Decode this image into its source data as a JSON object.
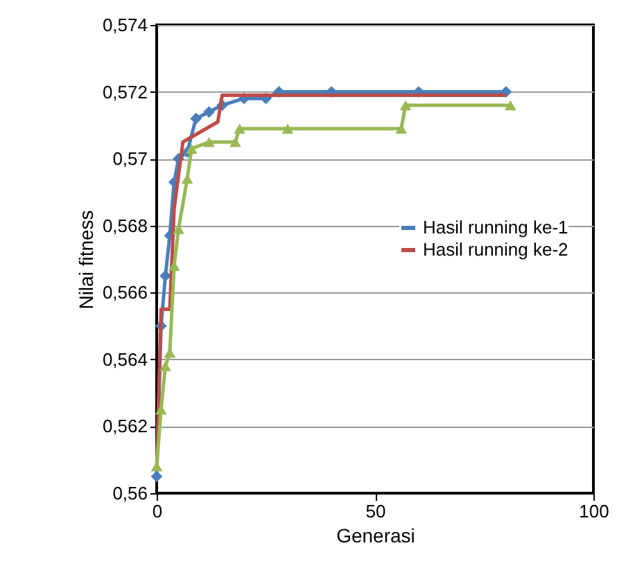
{
  "chart_data": {
    "type": "line",
    "xlabel": "Generasi",
    "ylabel": "Nilai fitness",
    "xlim": [
      0,
      100
    ],
    "xticks": [
      0,
      50,
      100
    ],
    "ylim": [
      0.56,
      0.574
    ],
    "yticks": [
      {
        "value": 0.56,
        "label": "0,56"
      },
      {
        "value": 0.562,
        "label": "0,562"
      },
      {
        "value": 0.564,
        "label": "0,564"
      },
      {
        "value": 0.566,
        "label": "0,566"
      },
      {
        "value": 0.568,
        "label": "0,568"
      },
      {
        "value": 0.57,
        "label": "0,57"
      },
      {
        "value": 0.572,
        "label": "0,572"
      },
      {
        "value": 0.574,
        "label": "0,574"
      }
    ],
    "grid": "y",
    "legend": "right",
    "series": [
      {
        "name": "Hasil running ke-1",
        "color": "#4a7ebb",
        "marker": "diamond",
        "x": [
          0,
          1,
          2,
          3,
          4,
          5,
          7,
          9,
          12,
          15,
          20,
          25,
          28,
          40,
          60,
          80
        ],
        "values": [
          0.5605,
          0.565,
          0.5665,
          0.5677,
          0.5693,
          0.57,
          0.5702,
          0.5712,
          0.5714,
          0.5716,
          0.5718,
          0.5718,
          0.572,
          0.572,
          0.572,
          0.572
        ]
      },
      {
        "name": "Hasil running ke-2",
        "color": "#be4b48",
        "marker": "none",
        "x": [
          0,
          1,
          3,
          4,
          6,
          14,
          15,
          80
        ],
        "values": [
          0.5607,
          0.5655,
          0.5655,
          0.5685,
          0.5705,
          0.5711,
          0.5719,
          0.5719
        ]
      },
      {
        "color": "#98b954",
        "marker": "triangle",
        "x": [
          0,
          1,
          2,
          3,
          4,
          5,
          7,
          8,
          12,
          18,
          19,
          30,
          56,
          57,
          81
        ],
        "values": [
          0.5608,
          0.5625,
          0.5638,
          0.5642,
          0.5668,
          0.5679,
          0.5694,
          0.5703,
          0.5705,
          0.5705,
          0.5709,
          0.5709,
          0.5709,
          0.5716,
          0.5716
        ]
      }
    ]
  }
}
